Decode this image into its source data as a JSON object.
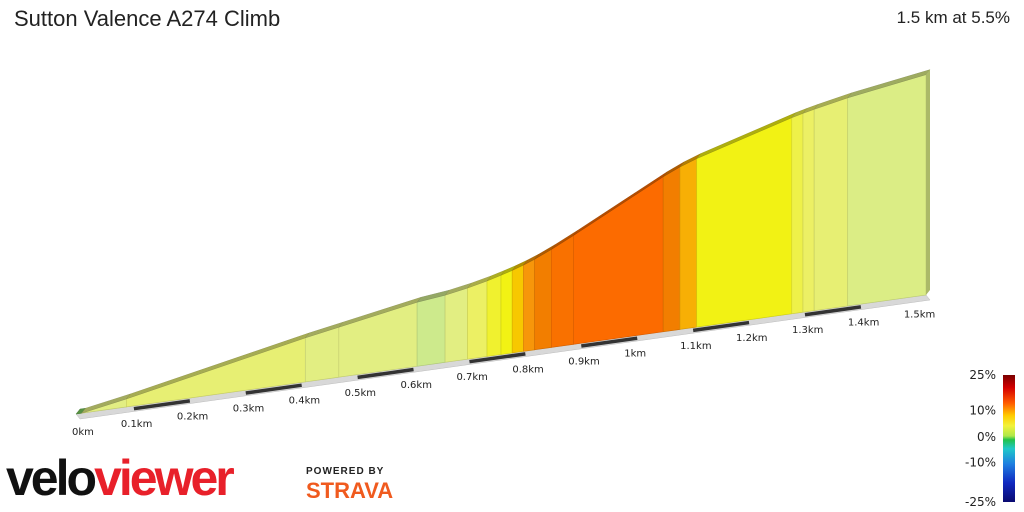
{
  "header": {
    "title": "Sutton Valence A274 Climb",
    "summary": "1.5 km at 5.5%"
  },
  "branding": {
    "logo_part1": "velo",
    "logo_part2": "viewer",
    "powered_by": "POWERED BY",
    "strava": "STRAVA"
  },
  "colors": {
    "logo_black": "#111111",
    "logo_red": "#e8202a",
    "strava_orange": "#f05a1e"
  },
  "chart_data": {
    "type": "area",
    "title": "Sutton Valence A274 Climb",
    "distance_unit": "km",
    "x_ticks": [
      "0km",
      "0.1km",
      "0.2km",
      "0.3km",
      "0.4km",
      "0.5km",
      "0.6km",
      "0.7km",
      "0.8km",
      "0.9km",
      "1km",
      "1.1km",
      "1.2km",
      "1.3km",
      "1.4km",
      "1.5km"
    ],
    "segments": [
      {
        "from": 0.0,
        "to": 0.01,
        "gradient": 0
      },
      {
        "from": 0.01,
        "to": 0.09,
        "gradient": 4
      },
      {
        "from": 0.09,
        "to": 0.41,
        "gradient": 4.5
      },
      {
        "from": 0.41,
        "to": 0.47,
        "gradient": 4
      },
      {
        "from": 0.47,
        "to": 0.61,
        "gradient": 4
      },
      {
        "from": 0.61,
        "to": 0.66,
        "gradient": 2.5
      },
      {
        "from": 0.66,
        "to": 0.7,
        "gradient": 4
      },
      {
        "from": 0.7,
        "to": 0.735,
        "gradient": 5
      },
      {
        "from": 0.735,
        "to": 0.76,
        "gradient": 6
      },
      {
        "from": 0.76,
        "to": 0.78,
        "gradient": 6.5
      },
      {
        "from": 0.78,
        "to": 0.8,
        "gradient": 7.5
      },
      {
        "from": 0.8,
        "to": 0.82,
        "gradient": 8.5
      },
      {
        "from": 0.82,
        "to": 0.85,
        "gradient": 10
      },
      {
        "from": 0.85,
        "to": 0.89,
        "gradient": 11
      },
      {
        "from": 0.89,
        "to": 1.05,
        "gradient": 11.5
      },
      {
        "from": 1.05,
        "to": 1.08,
        "gradient": 10
      },
      {
        "from": 1.08,
        "to": 1.11,
        "gradient": 8
      },
      {
        "from": 1.11,
        "to": 1.28,
        "gradient": 6.5
      },
      {
        "from": 1.28,
        "to": 1.3,
        "gradient": 5.5
      },
      {
        "from": 1.3,
        "to": 1.32,
        "gradient": 5
      },
      {
        "from": 1.32,
        "to": 1.38,
        "gradient": 4.5
      },
      {
        "from": 1.38,
        "to": 1.52,
        "gradient": 3.5
      }
    ],
    "gradient_scale": {
      "labels": [
        "25%",
        "10%",
        "0%",
        "-10%",
        "-25%"
      ],
      "values": [
        25,
        10,
        0,
        -10,
        -25
      ]
    }
  }
}
